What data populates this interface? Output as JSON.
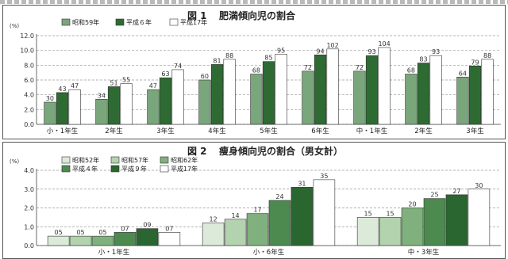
{
  "header_text": "",
  "charts": [
    {
      "id": "chart-obesity",
      "figure_label": "図 1",
      "title": "肥満傾向児の割合",
      "y_unit": "(%)",
      "legend_columns": 3,
      "chart_data": {
        "type": "bar",
        "title": "肥満傾向児の割合",
        "ylabel": "(%)",
        "xlabel": "",
        "ylim": [
          0,
          12
        ],
        "yticks": [
          "0.0",
          "2.0",
          "4.0",
          "6.0",
          "8.0",
          "10.0",
          "12.0"
        ],
        "categories": [
          "小・1年生",
          "2年生",
          "3年生",
          "4年生",
          "5年生",
          "6年生",
          "中・1年生",
          "2年生",
          "3年生"
        ],
        "series": [
          {
            "name": "昭和59年",
            "color": "#7aa67c",
            "values": [
              3.0,
              3.4,
              4.7,
              6.0,
              6.8,
              7.2,
              7.2,
              6.8,
              6.4
            ]
          },
          {
            "name": "平成６年",
            "color": "#2e6b33",
            "values": [
              4.3,
              5.1,
              6.3,
              8.1,
              8.5,
              9.4,
              9.3,
              8.3,
              7.9
            ]
          },
          {
            "name": "平成17年",
            "color": "#ffffff",
            "values": [
              4.7,
              5.5,
              7.4,
              8.8,
              9.5,
              10.2,
              10.4,
              9.3,
              8.8
            ]
          }
        ],
        "data_labels": [
          [
            "30",
            "34",
            "47",
            "60",
            "68",
            "72",
            "72",
            "68",
            "64"
          ],
          [
            "43",
            "51",
            "63",
            "81",
            "85",
            "94",
            "93",
            "83",
            "79"
          ],
          [
            "47",
            "55",
            "74",
            "88",
            "95",
            "102",
            "104",
            "93",
            "88"
          ]
        ]
      }
    },
    {
      "id": "chart-slender",
      "figure_label": "図 2",
      "title": "痩身傾向児の割合（男女計）",
      "y_unit": "(%)",
      "legend_columns": 3,
      "chart_data": {
        "type": "bar",
        "title": "痩身傾向児の割合（男女計）",
        "ylabel": "(%)",
        "xlabel": "",
        "ylim": [
          0,
          4
        ],
        "yticks": [
          "0.0",
          "1.0",
          "2.0",
          "3.0",
          "4.0"
        ],
        "categories": [
          "小・1年生",
          "小・6年生",
          "中・3年生"
        ],
        "series": [
          {
            "name": "昭和52年",
            "color": "#dcebd9",
            "values": [
              0.5,
              1.2,
              1.5
            ]
          },
          {
            "name": "昭和57年",
            "color": "#b3d2ae",
            "values": [
              0.5,
              1.4,
              1.5
            ]
          },
          {
            "name": "昭和62年",
            "color": "#7fb07d",
            "values": [
              0.5,
              1.7,
              2.0
            ]
          },
          {
            "name": "平成４年",
            "color": "#4d8a50",
            "values": [
              0.7,
              2.4,
              2.5
            ]
          },
          {
            "name": "平成９年",
            "color": "#2a6630",
            "values": [
              0.9,
              3.1,
              2.7
            ]
          },
          {
            "name": "平成17年",
            "color": "#ffffff",
            "values": [
              0.7,
              3.5,
              3.0
            ]
          }
        ],
        "data_labels": [
          [
            "05",
            "12",
            "15"
          ],
          [
            "05",
            "14",
            "15"
          ],
          [
            "05",
            "17",
            "20"
          ],
          [
            "07",
            "24",
            "25"
          ],
          [
            "09",
            "31",
            "27"
          ],
          [
            "07",
            "35",
            "30"
          ]
        ]
      }
    }
  ]
}
